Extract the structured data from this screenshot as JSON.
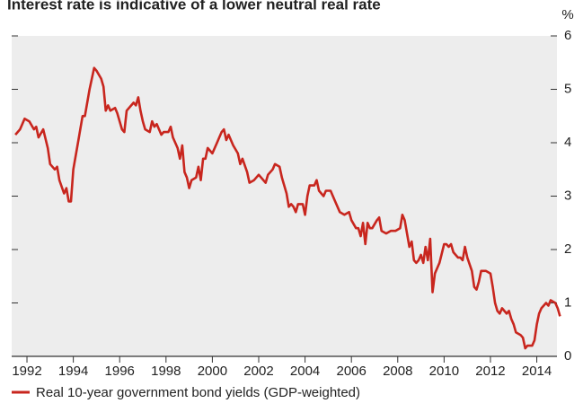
{
  "chart_data": {
    "type": "line",
    "title": "Interest rate is indicative of a lower neutral real rate",
    "y_unit": "%",
    "x": [
      1991.5,
      1991.7,
      1991.9,
      1992.1,
      1992.3,
      1992.4,
      1992.5,
      1992.7,
      1992.9,
      1993.0,
      1993.2,
      1993.3,
      1993.4,
      1993.6,
      1993.7,
      1993.8,
      1993.9,
      1994.0,
      1994.2,
      1994.4,
      1994.5,
      1994.7,
      1994.9,
      1995.0,
      1995.2,
      1995.3,
      1995.4,
      1995.5,
      1995.6,
      1995.8,
      1995.9,
      1996.1,
      1996.2,
      1996.3,
      1996.5,
      1996.6,
      1996.7,
      1996.8,
      1996.9,
      1997.0,
      1997.1,
      1997.3,
      1997.4,
      1997.5,
      1997.6,
      1997.8,
      1997.9,
      1998.1,
      1998.2,
      1998.3,
      1998.5,
      1998.6,
      1998.7,
      1998.8,
      1998.9,
      1999.0,
      1999.1,
      1999.3,
      1999.4,
      1999.5,
      1999.6,
      1999.7,
      1999.8,
      2000.0,
      2000.2,
      2000.3,
      2000.4,
      2000.5,
      2000.6,
      2000.7,
      2000.9,
      2001.1,
      2001.2,
      2001.3,
      2001.5,
      2001.6,
      2001.8,
      2002.0,
      2002.1,
      2002.3,
      2002.4,
      2002.6,
      2002.7,
      2002.9,
      2003.0,
      2003.2,
      2003.3,
      2003.4,
      2003.5,
      2003.6,
      2003.7,
      2003.9,
      2004.0,
      2004.1,
      2004.2,
      2004.4,
      2004.5,
      2004.6,
      2004.8,
      2004.9,
      2005.1,
      2005.3,
      2005.5,
      2005.7,
      2005.9,
      2006.0,
      2006.2,
      2006.3,
      2006.4,
      2006.5,
      2006.6,
      2006.7,
      2006.8,
      2006.9,
      2007.1,
      2007.2,
      2007.3,
      2007.5,
      2007.7,
      2007.9,
      2008.1,
      2008.2,
      2008.3,
      2008.4,
      2008.5,
      2008.6,
      2008.7,
      2008.8,
      2008.9,
      2009.0,
      2009.1,
      2009.2,
      2009.3,
      2009.4,
      2009.5,
      2009.6,
      2009.8,
      2010.0,
      2010.1,
      2010.2,
      2010.3,
      2010.4,
      2010.6,
      2010.7,
      2010.8,
      2010.9,
      2011.0,
      2011.2,
      2011.3,
      2011.4,
      2011.5,
      2011.6,
      2011.8,
      2012.0,
      2012.1,
      2012.2,
      2012.3,
      2012.4,
      2012.5,
      2012.7,
      2012.8,
      2012.9,
      2013.0,
      2013.1,
      2013.3,
      2013.4,
      2013.5,
      2013.6,
      2013.8,
      2013.9,
      2014.0,
      2014.1,
      2014.2,
      2014.4,
      2014.5,
      2014.6,
      2014.8,
      2014.9,
      2015.0
    ],
    "series": [
      {
        "name": "Real 10-year government bond yields (GDP-weighted)",
        "color": "#c8261e",
        "values": [
          4.15,
          4.25,
          4.45,
          4.4,
          4.25,
          4.3,
          4.1,
          4.25,
          3.9,
          3.6,
          3.5,
          3.55,
          3.3,
          3.05,
          3.15,
          2.9,
          2.9,
          3.5,
          4.0,
          4.5,
          4.5,
          5.0,
          5.4,
          5.35,
          5.2,
          5.05,
          4.6,
          4.7,
          4.6,
          4.65,
          4.55,
          4.25,
          4.2,
          4.6,
          4.7,
          4.75,
          4.7,
          4.85,
          4.6,
          4.4,
          4.25,
          4.2,
          4.4,
          4.3,
          4.35,
          4.15,
          4.2,
          4.2,
          4.3,
          4.1,
          3.9,
          3.7,
          3.95,
          3.45,
          3.35,
          3.15,
          3.3,
          3.35,
          3.55,
          3.3,
          3.7,
          3.7,
          3.9,
          3.8,
          4.0,
          4.1,
          4.2,
          4.25,
          4.05,
          4.15,
          3.95,
          3.8,
          3.6,
          3.7,
          3.45,
          3.25,
          3.3,
          3.4,
          3.35,
          3.25,
          3.4,
          3.5,
          3.6,
          3.55,
          3.35,
          3.05,
          2.8,
          2.85,
          2.8,
          2.7,
          2.85,
          2.85,
          2.65,
          3.0,
          3.2,
          3.2,
          3.3,
          3.1,
          3.0,
          3.1,
          3.1,
          2.9,
          2.7,
          2.65,
          2.7,
          2.55,
          2.4,
          2.4,
          2.25,
          2.5,
          2.1,
          2.5,
          2.4,
          2.4,
          2.55,
          2.6,
          2.35,
          2.3,
          2.35,
          2.35,
          2.4,
          2.65,
          2.55,
          2.3,
          2.05,
          2.15,
          1.8,
          1.75,
          1.8,
          1.9,
          1.75,
          2.05,
          1.8,
          2.2,
          1.2,
          1.55,
          1.75,
          2.1,
          2.1,
          2.05,
          2.1,
          1.95,
          1.85,
          1.85,
          1.8,
          2.05,
          1.85,
          1.6,
          1.3,
          1.25,
          1.4,
          1.6,
          1.6,
          1.55,
          1.3,
          1.0,
          0.85,
          0.8,
          0.9,
          0.8,
          0.85,
          0.7,
          0.6,
          0.45,
          0.4,
          0.35,
          0.15,
          0.2,
          0.2,
          0.3,
          0.6,
          0.8,
          0.9,
          1.0,
          0.95,
          1.05,
          1.0,
          0.9,
          0.75
        ]
      }
    ],
    "xlim": [
      1991.34,
      2014.87
    ],
    "xticks": [
      1992,
      1994,
      1996,
      1998,
      2000,
      2002,
      2004,
      2006,
      2008,
      2010,
      2012,
      2014
    ],
    "ylim": [
      0,
      6
    ],
    "yticks": [
      0,
      1,
      2,
      3,
      4,
      5,
      6
    ],
    "y_axis_side": "right"
  }
}
